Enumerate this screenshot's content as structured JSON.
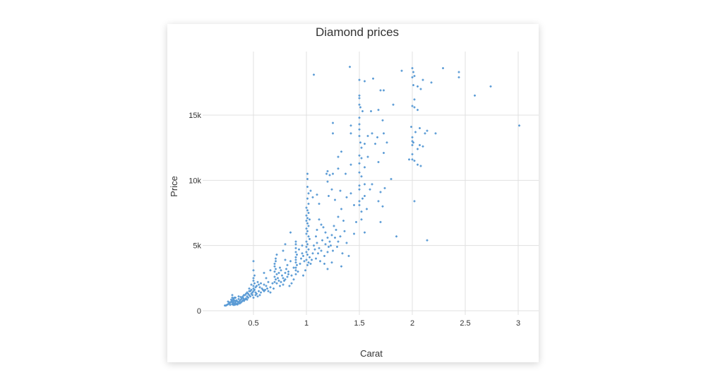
{
  "chart_data": {
    "type": "scatter",
    "title": "Diamond prices",
    "xlabel": "Carat",
    "ylabel": "Price",
    "xlim": [
      0,
      3.05
    ],
    "ylim": [
      0,
      19800
    ],
    "x_ticks": [
      {
        "value": 0.5,
        "label": "0.5"
      },
      {
        "value": 1,
        "label": "1"
      },
      {
        "value": 1.5,
        "label": "1.5"
      },
      {
        "value": 2,
        "label": "2"
      },
      {
        "value": 2.5,
        "label": "2.5"
      },
      {
        "value": 3,
        "label": "3"
      }
    ],
    "y_ticks": [
      {
        "value": 0,
        "label": "0"
      },
      {
        "value": 5000,
        "label": "5k"
      },
      {
        "value": 10000,
        "label": "10k"
      },
      {
        "value": 15000,
        "label": "15k"
      }
    ],
    "grid": true,
    "legend": "none",
    "marker_color": "#5b9bd5",
    "points": [
      [
        1.07,
        18100
      ],
      [
        1.41,
        18700
      ],
      [
        1.5,
        17700
      ],
      [
        1.55,
        17600
      ],
      [
        1.63,
        17800
      ],
      [
        1.9,
        18400
      ],
      [
        2.0,
        18600
      ],
      [
        2.01,
        18300
      ],
      [
        2.02,
        18000
      ],
      [
        2.0,
        17900
      ],
      [
        2.1,
        17700
      ],
      [
        2.18,
        17500
      ],
      [
        2.29,
        18600
      ],
      [
        2.44,
        18300
      ],
      [
        2.44,
        17900
      ],
      [
        2.59,
        16500
      ],
      [
        2.74,
        17200
      ],
      [
        3.01,
        14200
      ],
      [
        2.14,
        5400
      ],
      [
        1.85,
        5700
      ],
      [
        1.55,
        6000
      ],
      [
        2.02,
        8400
      ],
      [
        1.7,
        16900
      ],
      [
        1.73,
        16900
      ],
      [
        2.01,
        17300
      ],
      [
        2.05,
        17200
      ],
      [
        2.08,
        17000
      ],
      [
        2.02,
        16200
      ],
      [
        2.0,
        15700
      ],
      [
        2.02,
        15600
      ],
      [
        2.05,
        15400
      ],
      [
        1.5,
        16500
      ],
      [
        1.5,
        16300
      ],
      [
        1.5,
        15800
      ],
      [
        1.51,
        15600
      ],
      [
        1.53,
        15300
      ],
      [
        1.61,
        15300
      ],
      [
        1.68,
        15400
      ],
      [
        1.72,
        14600
      ],
      [
        1.5,
        14800
      ],
      [
        1.82,
        15800
      ],
      [
        1.5,
        14300
      ],
      [
        1.5,
        13900
      ],
      [
        1.5,
        13400
      ],
      [
        1.58,
        13400
      ],
      [
        1.62,
        13600
      ],
      [
        1.67,
        13300
      ],
      [
        1.73,
        13600
      ],
      [
        1.51,
        12900
      ],
      [
        1.55,
        12800
      ],
      [
        1.65,
        12800
      ],
      [
        1.76,
        12900
      ],
      [
        1.52,
        12500
      ],
      [
        1.52,
        11700
      ],
      [
        1.5,
        11900
      ],
      [
        1.5,
        11300
      ],
      [
        1.55,
        11000
      ],
      [
        1.58,
        11800
      ],
      [
        1.68,
        11400
      ],
      [
        1.73,
        12100
      ],
      [
        1.5,
        10600
      ],
      [
        1.52,
        10300
      ],
      [
        1.55,
        9700
      ],
      [
        1.5,
        9600
      ],
      [
        1.5,
        9300
      ],
      [
        1.53,
        8600
      ],
      [
        1.6,
        9300
      ],
      [
        1.62,
        9700
      ],
      [
        1.7,
        9100
      ],
      [
        1.74,
        9400
      ],
      [
        1.5,
        8400
      ],
      [
        1.5,
        8100
      ],
      [
        1.52,
        7600
      ],
      [
        1.57,
        7800
      ],
      [
        1.68,
        8400
      ],
      [
        1.72,
        8000
      ],
      [
        1.7,
        6800
      ],
      [
        1.8,
        10100
      ],
      [
        1.52,
        7000
      ],
      [
        1.55,
        8800
      ],
      [
        2.0,
        13300
      ],
      [
        2.0,
        13000
      ],
      [
        2.01,
        12900
      ],
      [
        2.0,
        12700
      ],
      [
        2.0,
        12000
      ],
      [
        2.0,
        11600
      ],
      [
        2.02,
        11500
      ],
      [
        2.05,
        11200
      ],
      [
        2.08,
        11100
      ],
      [
        1.97,
        11600
      ],
      [
        2.03,
        13700
      ],
      [
        2.14,
        13800
      ],
      [
        2.22,
        13600
      ],
      [
        2.07,
        12700
      ],
      [
        2.1,
        12600
      ],
      [
        2.05,
        12400
      ],
      [
        1.99,
        14100
      ],
      [
        2.07,
        14000
      ],
      [
        2.12,
        13600
      ],
      [
        1.42,
        14200
      ],
      [
        1.25,
        14400
      ],
      [
        1.25,
        13600
      ],
      [
        1.3,
        11800
      ],
      [
        1.33,
        12200
      ],
      [
        1.42,
        13600
      ],
      [
        1.22,
        10400
      ],
      [
        1.25,
        10500
      ],
      [
        1.2,
        10700
      ],
      [
        1.19,
        10500
      ],
      [
        1.3,
        10900
      ],
      [
        1.37,
        10500
      ],
      [
        1.42,
        11200
      ],
      [
        1.2,
        9900
      ],
      [
        1.24,
        9300
      ],
      [
        1.21,
        8800
      ],
      [
        1.27,
        8500
      ],
      [
        1.32,
        9200
      ],
      [
        1.38,
        8700
      ],
      [
        1.42,
        9000
      ],
      [
        1.45,
        8100
      ],
      [
        1.01,
        10500
      ],
      [
        1.01,
        10100
      ],
      [
        1.01,
        9500
      ],
      [
        1.02,
        9000
      ],
      [
        1.04,
        9200
      ],
      [
        1.06,
        8700
      ],
      [
        1.1,
        8900
      ],
      [
        1.01,
        8600
      ],
      [
        1.02,
        8200
      ],
      [
        1.0,
        7900
      ],
      [
        1.01,
        7700
      ],
      [
        1.02,
        7500
      ],
      [
        1.0,
        7300
      ],
      [
        1.01,
        7100
      ],
      [
        1.03,
        7000
      ],
      [
        1.0,
        6900
      ],
      [
        1.01,
        6700
      ],
      [
        1.02,
        6500
      ],
      [
        1.0,
        6300
      ],
      [
        1.01,
        6100
      ],
      [
        1.0,
        5900
      ],
      [
        1.02,
        5700
      ],
      [
        1.03,
        5500
      ],
      [
        1.0,
        5300
      ],
      [
        1.01,
        5100
      ],
      [
        1.0,
        4900
      ],
      [
        1.02,
        4700
      ],
      [
        1.0,
        4500
      ],
      [
        1.01,
        4300
      ],
      [
        1.03,
        4100
      ],
      [
        1.0,
        3900
      ],
      [
        1.02,
        3700
      ],
      [
        1.01,
        3500
      ],
      [
        1.04,
        3600
      ],
      [
        1.06,
        4400
      ],
      [
        1.07,
        5000
      ],
      [
        1.09,
        5700
      ],
      [
        1.1,
        6200
      ],
      [
        1.12,
        7000
      ],
      [
        1.14,
        6600
      ],
      [
        1.16,
        6400
      ],
      [
        1.18,
        6000
      ],
      [
        1.2,
        5600
      ],
      [
        1.22,
        5300
      ],
      [
        1.24,
        5800
      ],
      [
        1.26,
        6500
      ],
      [
        1.28,
        6200
      ],
      [
        1.3,
        7200
      ],
      [
        1.33,
        7800
      ],
      [
        1.35,
        6900
      ],
      [
        1.1,
        5200
      ],
      [
        1.12,
        4800
      ],
      [
        1.15,
        5400
      ],
      [
        1.18,
        5100
      ],
      [
        1.21,
        4900
      ],
      [
        1.23,
        5000
      ],
      [
        1.27,
        5600
      ],
      [
        1.3,
        5300
      ],
      [
        1.32,
        5700
      ],
      [
        1.36,
        6100
      ],
      [
        1.08,
        4700
      ],
      [
        1.11,
        4400
      ],
      [
        1.14,
        4600
      ],
      [
        1.17,
        4200
      ],
      [
        1.2,
        4500
      ],
      [
        1.25,
        4600
      ],
      [
        1.29,
        4900
      ],
      [
        1.34,
        4400
      ],
      [
        1.05,
        3900
      ],
      [
        1.09,
        4000
      ],
      [
        1.13,
        3800
      ],
      [
        1.17,
        3600
      ],
      [
        1.24,
        3700
      ],
      [
        1.2,
        3200
      ],
      [
        1.33,
        3400
      ],
      [
        1.4,
        4200
      ],
      [
        1.38,
        5200
      ],
      [
        1.45,
        5900
      ],
      [
        1.47,
        6800
      ],
      [
        1.12,
        8200
      ],
      [
        0.9,
        5300
      ],
      [
        0.9,
        5100
      ],
      [
        0.9,
        4800
      ],
      [
        0.9,
        4500
      ],
      [
        0.91,
        4300
      ],
      [
        0.9,
        4100
      ],
      [
        0.9,
        3900
      ],
      [
        0.9,
        3700
      ],
      [
        0.91,
        3500
      ],
      [
        0.9,
        3300
      ],
      [
        0.9,
        3100
      ],
      [
        0.92,
        3000
      ],
      [
        0.9,
        2800
      ],
      [
        0.94,
        3600
      ],
      [
        0.95,
        4000
      ],
      [
        0.96,
        4400
      ],
      [
        0.97,
        4200
      ],
      [
        0.98,
        3800
      ],
      [
        0.93,
        4700
      ],
      [
        0.96,
        5000
      ],
      [
        0.85,
        3800
      ],
      [
        0.85,
        6000
      ],
      [
        0.88,
        3300
      ],
      [
        0.97,
        2700
      ],
      [
        0.99,
        3100
      ],
      [
        0.8,
        5100
      ],
      [
        0.78,
        4600
      ],
      [
        0.8,
        3900
      ],
      [
        0.82,
        3500
      ],
      [
        0.83,
        3000
      ],
      [
        0.71,
        3800
      ],
      [
        0.7,
        3600
      ],
      [
        0.7,
        3400
      ],
      [
        0.71,
        3200
      ],
      [
        0.7,
        3000
      ],
      [
        0.72,
        2800
      ],
      [
        0.7,
        2600
      ],
      [
        0.71,
        2400
      ],
      [
        0.7,
        2200
      ],
      [
        0.72,
        2100
      ],
      [
        0.73,
        2500
      ],
      [
        0.74,
        2900
      ],
      [
        0.75,
        3300
      ],
      [
        0.76,
        3100
      ],
      [
        0.77,
        2700
      ],
      [
        0.78,
        2500
      ],
      [
        0.79,
        2300
      ],
      [
        0.8,
        2900
      ],
      [
        0.81,
        3200
      ],
      [
        0.82,
        2600
      ],
      [
        0.74,
        2300
      ],
      [
        0.76,
        2200
      ],
      [
        0.78,
        2000
      ],
      [
        0.8,
        2400
      ],
      [
        0.83,
        2800
      ],
      [
        0.86,
        2700
      ],
      [
        0.88,
        2400
      ],
      [
        0.86,
        2100
      ],
      [
        0.84,
        1900
      ],
      [
        0.75,
        1900
      ],
      [
        0.71,
        4000
      ],
      [
        0.72,
        4300
      ],
      [
        0.66,
        3100
      ],
      [
        0.62,
        2500
      ],
      [
        0.64,
        2200
      ],
      [
        0.6,
        2900
      ],
      [
        0.66,
        1800
      ],
      [
        0.68,
        2100
      ],
      [
        0.69,
        1700
      ],
      [
        0.6,
        1500
      ],
      [
        0.51,
        2700
      ],
      [
        0.5,
        2500
      ],
      [
        0.5,
        2300
      ],
      [
        0.51,
        2100
      ],
      [
        0.5,
        1900
      ],
      [
        0.52,
        1800
      ],
      [
        0.5,
        1700
      ],
      [
        0.51,
        1600
      ],
      [
        0.5,
        1500
      ],
      [
        0.52,
        1400
      ],
      [
        0.53,
        1900
      ],
      [
        0.54,
        2200
      ],
      [
        0.55,
        2000
      ],
      [
        0.56,
        1800
      ],
      [
        0.57,
        2100
      ],
      [
        0.58,
        1700
      ],
      [
        0.53,
        1300
      ],
      [
        0.55,
        1500
      ],
      [
        0.57,
        1400
      ],
      [
        0.59,
        1600
      ],
      [
        0.6,
        2000
      ],
      [
        0.62,
        1900
      ],
      [
        0.63,
        1700
      ],
      [
        0.61,
        1600
      ],
      [
        0.64,
        1500
      ],
      [
        0.66,
        1400
      ],
      [
        0.52,
        1200
      ],
      [
        0.54,
        1100
      ],
      [
        0.56,
        1200
      ],
      [
        0.5,
        3800
      ],
      [
        0.5,
        3100
      ],
      [
        0.48,
        2000
      ],
      [
        0.46,
        1700
      ],
      [
        0.45,
        1300
      ],
      [
        0.47,
        1500
      ],
      [
        0.49,
        1200
      ],
      [
        0.44,
        1100
      ],
      [
        0.5,
        1000
      ],
      [
        0.42,
        1200
      ],
      [
        0.4,
        1100
      ],
      [
        0.31,
        900
      ],
      [
        0.32,
        800
      ],
      [
        0.33,
        700
      ],
      [
        0.3,
        650
      ],
      [
        0.31,
        600
      ],
      [
        0.32,
        550
      ],
      [
        0.3,
        500
      ],
      [
        0.31,
        450
      ],
      [
        0.33,
        600
      ],
      [
        0.34,
        800
      ],
      [
        0.35,
        700
      ],
      [
        0.36,
        900
      ],
      [
        0.37,
        750
      ],
      [
        0.38,
        850
      ],
      [
        0.39,
        950
      ],
      [
        0.4,
        1000
      ],
      [
        0.41,
        900
      ],
      [
        0.42,
        850
      ],
      [
        0.35,
        550
      ],
      [
        0.36,
        650
      ],
      [
        0.34,
        500
      ],
      [
        0.3,
        800
      ],
      [
        0.3,
        1000
      ],
      [
        0.29,
        700
      ],
      [
        0.28,
        600
      ],
      [
        0.27,
        550
      ],
      [
        0.26,
        500
      ],
      [
        0.25,
        450
      ],
      [
        0.24,
        400
      ],
      [
        0.23,
        400
      ],
      [
        0.28,
        450
      ],
      [
        0.27,
        650
      ],
      [
        0.26,
        700
      ],
      [
        0.33,
        1000
      ],
      [
        0.36,
        1100
      ],
      [
        0.38,
        1050
      ],
      [
        0.39,
        700
      ],
      [
        0.41,
        750
      ],
      [
        0.43,
        950
      ],
      [
        0.44,
        850
      ],
      [
        0.32,
        450
      ],
      [
        0.33,
        480
      ],
      [
        0.35,
        480
      ],
      [
        0.37,
        560
      ],
      [
        0.38,
        620
      ],
      [
        0.4,
        800
      ],
      [
        0.31,
        700
      ],
      [
        0.32,
        1000
      ],
      [
        0.3,
        1200
      ],
      [
        0.29,
        850
      ],
      [
        0.45,
        1000
      ],
      [
        0.46,
        1200
      ],
      [
        0.47,
        1100
      ],
      [
        0.48,
        1300
      ],
      [
        0.49,
        1400
      ],
      [
        0.43,
        1300
      ],
      [
        0.44,
        1400
      ],
      [
        0.46,
        1500
      ],
      [
        0.48,
        1600
      ],
      [
        0.41,
        1200
      ]
    ]
  }
}
